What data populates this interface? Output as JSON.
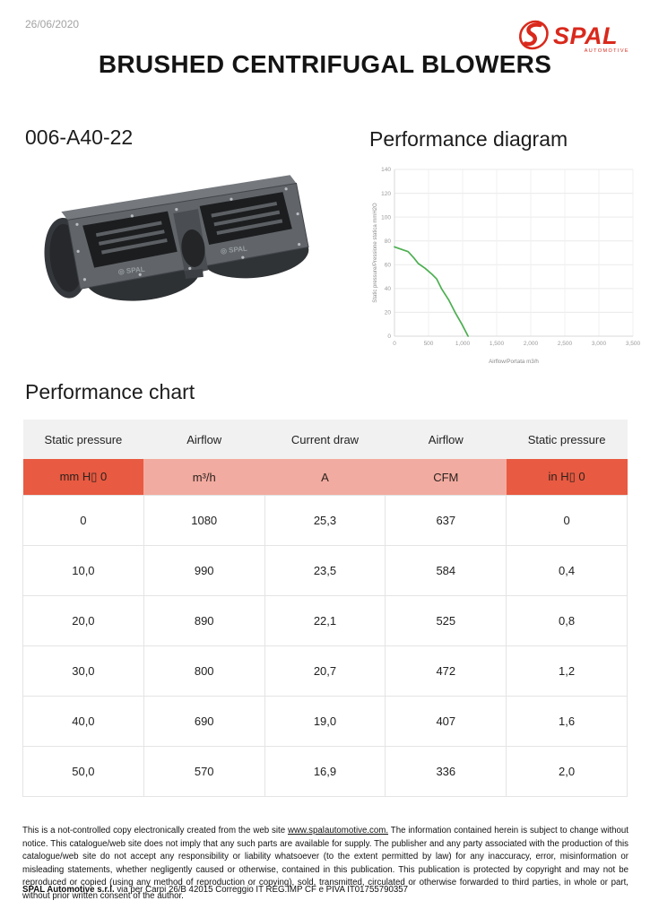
{
  "page": {
    "date": "26/06/2020",
    "title": "BRUSHED CENTRIFUGAL BLOWERS"
  },
  "logo": {
    "brand": "SPAL",
    "sub": "AUTOMOTIVE",
    "color": "#d9291c"
  },
  "product": {
    "code": "006-A40-22"
  },
  "sections": {
    "diagram_title": "Performance diagram",
    "chart_title": "Performance chart"
  },
  "chart_data": {
    "type": "line",
    "title": "",
    "xlabel": "Airflow/Portata m3/h",
    "ylabel": "Static pressure/Pressione statica mmH2O",
    "xlim": [
      0,
      3500
    ],
    "ylim": [
      0,
      140
    ],
    "x_ticks": [
      0,
      500,
      1000,
      1500,
      2000,
      2500,
      3000,
      3500
    ],
    "x_tick_labels": [
      "0",
      "500",
      "1,000",
      "1,500",
      "2,000",
      "2,500",
      "3,000",
      "3,500"
    ],
    "y_ticks": [
      0,
      20,
      40,
      60,
      80,
      100,
      120,
      140
    ],
    "grid": true,
    "legend": "none",
    "line_color": "#4caf50",
    "series": [
      {
        "name": "static pressure vs airflow",
        "points": [
          [
            0,
            75
          ],
          [
            200,
            71
          ],
          [
            280,
            66
          ],
          [
            350,
            61
          ],
          [
            450,
            57
          ],
          [
            550,
            52
          ],
          [
            620,
            48
          ],
          [
            690,
            40
          ],
          [
            800,
            30
          ],
          [
            890,
            20
          ],
          [
            990,
            10
          ],
          [
            1080,
            0
          ]
        ]
      }
    ]
  },
  "table": {
    "headers": [
      "Static pressure",
      "Airflow",
      "Current draw",
      "Airflow",
      "Static pressure"
    ],
    "units": [
      "mm H▯ 0",
      "m³/h",
      "A",
      "CFM",
      "in H▯ 0"
    ],
    "rows": [
      [
        "0",
        "1080",
        "25,3",
        "637",
        "0"
      ],
      [
        "10,0",
        "990",
        "23,5",
        "584",
        "0,4"
      ],
      [
        "20,0",
        "890",
        "22,1",
        "525",
        "0,8"
      ],
      [
        "30,0",
        "800",
        "20,7",
        "472",
        "1,2"
      ],
      [
        "40,0",
        "690",
        "19,0",
        "407",
        "1,6"
      ],
      [
        "50,0",
        "570",
        "16,9",
        "336",
        "2,0"
      ]
    ],
    "colors": {
      "header_bg": "#f1f1f1",
      "unit_strong_bg": "#e85a41",
      "unit_light_bg": "#f2aba0"
    }
  },
  "footer": {
    "disclaimer_pre": "This is a not-controlled copy electronically created from the web site ",
    "link_text": "www.spalautomotive.com.",
    "disclaimer_post": " The information contained herein is subject to change without notice. This catalogue/web site does not imply that any such parts are available for supply. The publisher and any party associated with the production of this catalogue/web site do not accept any responsibility or liability whatsoever (to the extent permitted by law) for any inaccuracy, error, misinformation or misleading statements, whether negligently caused or otherwise, contained in this publication. This publication is protected by copyright and may not be reproduced or copied (using any method of reproduction or copying), sold, transmitted, circulated or otherwise forwarded to third parties, in whole or part, without prior written consent of the author.",
    "company_bold": "SPAL Automotive s.r.l.",
    "company_rest": " via per Carpi 26/B 42015 Correggio IT  REG.IMP CF e PIVA  IT01755790357"
  }
}
